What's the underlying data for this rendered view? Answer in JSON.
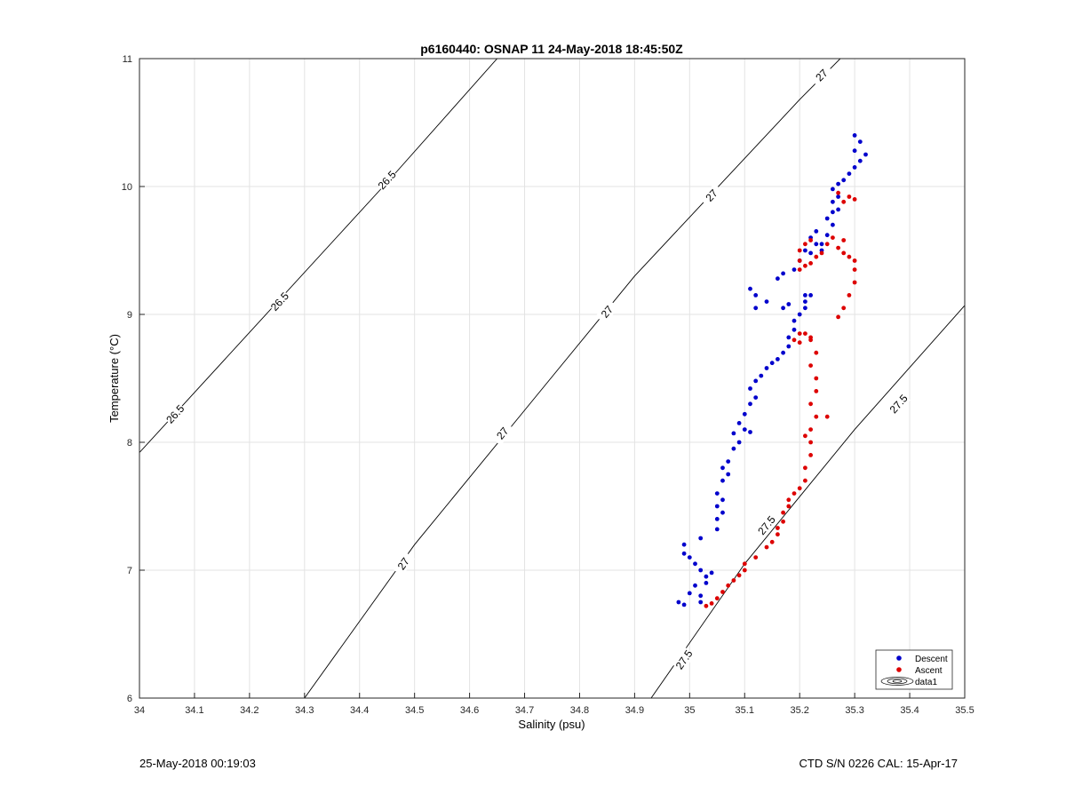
{
  "chart_data": {
    "type": "scatter",
    "title": "p6160440: OSNAP 11 24-May-2018 18:45:50Z",
    "xlabel": "Salinity (psu)",
    "ylabel": "Temperature (°C)",
    "xlim": [
      34,
      35.5
    ],
    "ylim": [
      6,
      11
    ],
    "xticks": [
      "34",
      "34.1",
      "34.2",
      "34.3",
      "34.4",
      "34.5",
      "34.6",
      "34.7",
      "34.8",
      "34.9",
      "35",
      "35.1",
      "35.2",
      "35.3",
      "35.4",
      "35.5"
    ],
    "yticks": [
      "6",
      "7",
      "8",
      "9",
      "10",
      "11"
    ],
    "grid": true,
    "legend_position": "bottom-right",
    "legend": [
      "Descent",
      "Ascent",
      "data1"
    ],
    "contours": [
      {
        "level": "26.5",
        "points": [
          [
            34.0,
            7.92
          ],
          [
            34.46,
            10.08
          ],
          [
            34.65,
            11.0
          ]
        ],
        "labels": [
          [
            34.065,
            8.22
          ],
          [
            34.255,
            9.1
          ],
          [
            34.45,
            10.05
          ]
        ]
      },
      {
        "level": "27",
        "points": [
          [
            34.3,
            6.0
          ],
          [
            34.5,
            7.2
          ],
          [
            34.7,
            8.25
          ],
          [
            34.9,
            9.3
          ],
          [
            35.2,
            10.68
          ],
          [
            35.32,
            11.2
          ]
        ],
        "labels": [
          [
            34.48,
            7.05
          ],
          [
            34.66,
            8.07
          ],
          [
            34.85,
            9.02
          ],
          [
            35.04,
            9.93
          ],
          [
            35.24,
            10.87
          ]
        ]
      },
      {
        "level": "27.5",
        "points": [
          [
            34.93,
            6.0
          ],
          [
            35.1,
            7.05
          ],
          [
            35.3,
            8.1
          ],
          [
            35.5,
            9.07
          ]
        ],
        "labels": [
          [
            34.99,
            6.3
          ],
          [
            35.14,
            7.35
          ],
          [
            35.38,
            8.3
          ]
        ]
      }
    ],
    "series": [
      {
        "name": "Descent",
        "color": "#0000cc",
        "points": [
          [
            34.98,
            6.75
          ],
          [
            34.99,
            6.73
          ],
          [
            35.0,
            6.82
          ],
          [
            35.01,
            6.88
          ],
          [
            35.02,
            6.8
          ],
          [
            35.02,
            6.75
          ],
          [
            35.03,
            6.9
          ],
          [
            35.03,
            6.95
          ],
          [
            35.04,
            6.98
          ],
          [
            35.02,
            7.0
          ],
          [
            35.01,
            7.05
          ],
          [
            35.0,
            7.1
          ],
          [
            34.99,
            7.13
          ],
          [
            34.99,
            7.2
          ],
          [
            35.02,
            7.25
          ],
          [
            35.05,
            7.32
          ],
          [
            35.05,
            7.4
          ],
          [
            35.06,
            7.45
          ],
          [
            35.05,
            7.5
          ],
          [
            35.06,
            7.55
          ],
          [
            35.05,
            7.6
          ],
          [
            35.06,
            7.7
          ],
          [
            35.07,
            7.75
          ],
          [
            35.06,
            7.8
          ],
          [
            35.07,
            7.85
          ],
          [
            35.08,
            7.95
          ],
          [
            35.09,
            8.0
          ],
          [
            35.08,
            8.07
          ],
          [
            35.1,
            8.1
          ],
          [
            35.11,
            8.08
          ],
          [
            35.09,
            8.15
          ],
          [
            35.1,
            8.22
          ],
          [
            35.11,
            8.3
          ],
          [
            35.12,
            8.35
          ],
          [
            35.11,
            8.42
          ],
          [
            35.12,
            8.48
          ],
          [
            35.13,
            8.52
          ],
          [
            35.14,
            8.58
          ],
          [
            35.15,
            8.62
          ],
          [
            35.16,
            8.65
          ],
          [
            35.17,
            8.7
          ],
          [
            35.18,
            8.75
          ],
          [
            35.18,
            8.82
          ],
          [
            35.19,
            8.88
          ],
          [
            35.19,
            8.95
          ],
          [
            35.2,
            9.0
          ],
          [
            35.21,
            9.05
          ],
          [
            35.21,
            9.1
          ],
          [
            35.22,
            9.15
          ],
          [
            35.21,
            9.15
          ],
          [
            35.18,
            9.08
          ],
          [
            35.17,
            9.05
          ],
          [
            35.14,
            9.1
          ],
          [
            35.12,
            9.05
          ],
          [
            35.11,
            9.2
          ],
          [
            35.12,
            9.15
          ],
          [
            35.17,
            9.32
          ],
          [
            35.16,
            9.28
          ],
          [
            35.19,
            9.35
          ],
          [
            35.2,
            9.42
          ],
          [
            35.21,
            9.5
          ],
          [
            35.22,
            9.48
          ],
          [
            35.23,
            9.55
          ],
          [
            35.24,
            9.5
          ],
          [
            35.22,
            9.6
          ],
          [
            35.23,
            9.65
          ],
          [
            35.25,
            9.62
          ],
          [
            35.24,
            9.55
          ],
          [
            35.26,
            9.7
          ],
          [
            35.25,
            9.75
          ],
          [
            35.26,
            9.8
          ],
          [
            35.27,
            9.82
          ],
          [
            35.26,
            9.88
          ],
          [
            35.27,
            9.92
          ],
          [
            35.26,
            9.98
          ],
          [
            35.27,
            10.02
          ],
          [
            35.28,
            10.05
          ],
          [
            35.29,
            10.1
          ],
          [
            35.3,
            10.15
          ],
          [
            35.31,
            10.2
          ],
          [
            35.3,
            10.28
          ],
          [
            35.31,
            10.35
          ],
          [
            35.3,
            10.4
          ],
          [
            35.32,
            10.25
          ]
        ]
      },
      {
        "name": "Ascent",
        "color": "#dd0000",
        "points": [
          [
            35.03,
            6.72
          ],
          [
            35.04,
            6.74
          ],
          [
            35.05,
            6.78
          ],
          [
            35.06,
            6.83
          ],
          [
            35.07,
            6.88
          ],
          [
            35.08,
            6.92
          ],
          [
            35.09,
            6.96
          ],
          [
            35.1,
            7.0
          ],
          [
            35.1,
            7.05
          ],
          [
            35.12,
            7.1
          ],
          [
            35.14,
            7.18
          ],
          [
            35.15,
            7.22
          ],
          [
            35.16,
            7.28
          ],
          [
            35.16,
            7.33
          ],
          [
            35.17,
            7.38
          ],
          [
            35.17,
            7.45
          ],
          [
            35.18,
            7.5
          ],
          [
            35.18,
            7.55
          ],
          [
            35.19,
            7.6
          ],
          [
            35.2,
            7.64
          ],
          [
            35.21,
            7.7
          ],
          [
            35.21,
            7.8
          ],
          [
            35.22,
            7.9
          ],
          [
            35.22,
            8.0
          ],
          [
            35.21,
            8.05
          ],
          [
            35.22,
            8.1
          ],
          [
            35.23,
            8.2
          ],
          [
            35.22,
            8.3
          ],
          [
            35.23,
            8.4
          ],
          [
            35.23,
            8.5
          ],
          [
            35.22,
            8.6
          ],
          [
            35.23,
            8.7
          ],
          [
            35.22,
            8.8
          ],
          [
            35.21,
            8.85
          ],
          [
            35.2,
            8.78
          ],
          [
            35.19,
            8.8
          ],
          [
            35.2,
            8.85
          ],
          [
            35.22,
            8.82
          ],
          [
            35.27,
            8.98
          ],
          [
            35.28,
            9.05
          ],
          [
            35.29,
            9.15
          ],
          [
            35.3,
            9.25
          ],
          [
            35.3,
            9.35
          ],
          [
            35.3,
            9.42
          ],
          [
            35.29,
            9.45
          ],
          [
            35.28,
            9.48
          ],
          [
            35.27,
            9.52
          ],
          [
            35.28,
            9.58
          ],
          [
            35.26,
            9.6
          ],
          [
            35.25,
            9.55
          ],
          [
            35.24,
            9.48
          ],
          [
            35.23,
            9.45
          ],
          [
            35.22,
            9.4
          ],
          [
            35.21,
            9.38
          ],
          [
            35.2,
            9.35
          ],
          [
            35.2,
            9.42
          ],
          [
            35.2,
            9.5
          ],
          [
            35.21,
            9.55
          ],
          [
            35.22,
            9.58
          ],
          [
            35.27,
            9.95
          ],
          [
            35.29,
            9.92
          ],
          [
            35.28,
            9.88
          ],
          [
            35.3,
            9.9
          ],
          [
            35.25,
            8.2
          ]
        ]
      }
    ]
  },
  "footer": {
    "left": "25-May-2018 00:19:03",
    "right": "CTD S/N 0226  CAL: 15-Apr-17"
  }
}
